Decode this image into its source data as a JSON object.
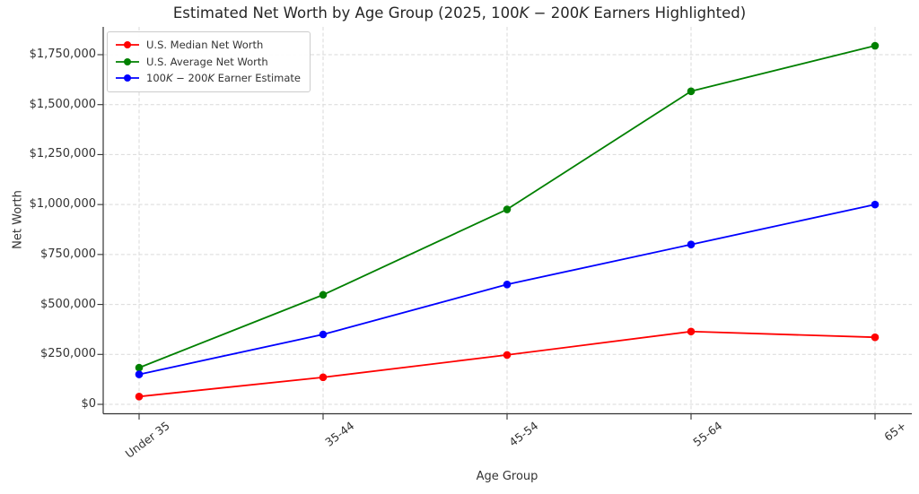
{
  "chart_data": {
    "type": "line",
    "title": "Estimated Net Worth by Age Group (2025, 100K − 200K Earners Highlighted)",
    "title_parts": [
      {
        "text": "Estimated Net Worth by Age Group (2025, ",
        "italic": false
      },
      {
        "text": "100",
        "italic": false
      },
      {
        "text": "K",
        "italic": true
      },
      {
        "text": " − ",
        "italic": false
      },
      {
        "text": "200",
        "italic": false
      },
      {
        "text": "K",
        "italic": true
      },
      {
        "text": " Earners Highlighted)",
        "italic": false
      }
    ],
    "xlabel": "Age Group",
    "ylabel": "Net Worth",
    "categories": [
      "Under 35",
      "35-44",
      "45-54",
      "55-64",
      "65+"
    ],
    "series": [
      {
        "name": "U.S. Median Net Worth",
        "name_parts": [
          {
            "text": "U.S. Median Net Worth",
            "italic": false
          }
        ],
        "color": "#ff0000",
        "marker": "circle",
        "values": [
          39040,
          135300,
          247200,
          364500,
          335600
        ]
      },
      {
        "name": "U.S. Average Net Worth",
        "name_parts": [
          {
            "text": "U.S. Average Net Worth",
            "italic": false
          }
        ],
        "color": "#008000",
        "marker": "circle",
        "values": [
          183500,
          548070,
          975800,
          1566900,
          1794600
        ]
      },
      {
        "name": "100K − 200K Earner Estimate",
        "name_parts": [
          {
            "text": "100",
            "italic": false
          },
          {
            "text": "K",
            "italic": true
          },
          {
            "text": " − ",
            "italic": false
          },
          {
            "text": "200",
            "italic": false
          },
          {
            "text": "K",
            "italic": true
          },
          {
            "text": " Earner Estimate",
            "italic": false
          }
        ],
        "color": "#0000ff",
        "marker": "circle",
        "values": [
          150000,
          350000,
          600000,
          800000,
          1000000
        ]
      }
    ],
    "yticks": [
      0,
      250000,
      500000,
      750000,
      1000000,
      1250000,
      1500000,
      1750000
    ],
    "ytick_labels": [
      "$0",
      "$250,000",
      "$500,000",
      "$750,000",
      "$1,000,000",
      "$1,250,000",
      "$1,500,000",
      "$1,750,000"
    ],
    "ylim": [
      -48000,
      1880000
    ],
    "grid": true,
    "grid_style": "dashed",
    "legend_position": "upper left",
    "colors": {
      "grid": "#d9d9d9",
      "spine": "#333333",
      "text": "#333333",
      "title": "#262626",
      "background": "#ffffff"
    }
  }
}
